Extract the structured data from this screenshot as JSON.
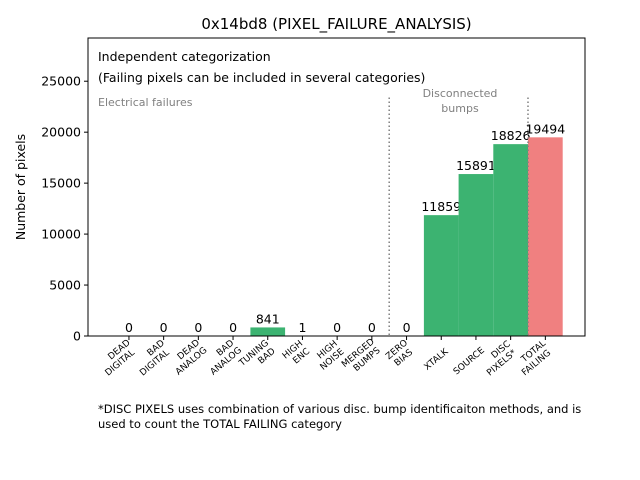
{
  "chart_data": {
    "type": "bar",
    "title": "0x14bd8 (PIXEL_FAILURE_ANALYSIS)",
    "xlabel": "",
    "ylabel": "Number of pixels",
    "ylim": [
      0,
      29241
    ],
    "yticks": [
      0,
      5000,
      10000,
      15000,
      20000,
      25000
    ],
    "categories": [
      [
        "DEAD",
        "DIGITAL"
      ],
      [
        "BAD",
        "DIGITAL"
      ],
      [
        "DEAD",
        "ANALOG"
      ],
      [
        "BAD",
        "ANALOG"
      ],
      [
        "TUNING",
        "BAD"
      ],
      [
        "HIGH",
        "ENC"
      ],
      [
        "HIGH",
        "NOISE"
      ],
      [
        "MERGED",
        "BUMPS"
      ],
      [
        "ZERO",
        "BIAS"
      ],
      [
        "XTALK"
      ],
      [
        "SOURCE"
      ],
      [
        "DISC",
        "PIXELS*"
      ],
      [
        "TOTAL",
        "FAILING"
      ]
    ],
    "values": [
      0,
      0,
      0,
      0,
      841,
      1,
      0,
      0,
      0,
      11859,
      15891,
      18826,
      19494
    ],
    "bar_colors": [
      "#3cb371",
      "#3cb371",
      "#3cb371",
      "#3cb371",
      "#3cb371",
      "#3cb371",
      "#3cb371",
      "#3cb371",
      "#3cb371",
      "#3cb371",
      "#3cb371",
      "#3cb371",
      "#f08080"
    ],
    "separators": [
      7.5,
      11.5
    ],
    "annotations": {
      "box_line1": "Independent categorization",
      "box_line2": "(Failing pixels can be included in several categories)",
      "electrical": "Electrical failures",
      "disconnected": [
        "Disconnected",
        "bumps"
      ]
    },
    "footnote": [
      "*DISC PIXELS uses combination of various disc. bump identificaiton methods, and is",
      "used to count the TOTAL FAILING category"
    ],
    "grid": false
  }
}
